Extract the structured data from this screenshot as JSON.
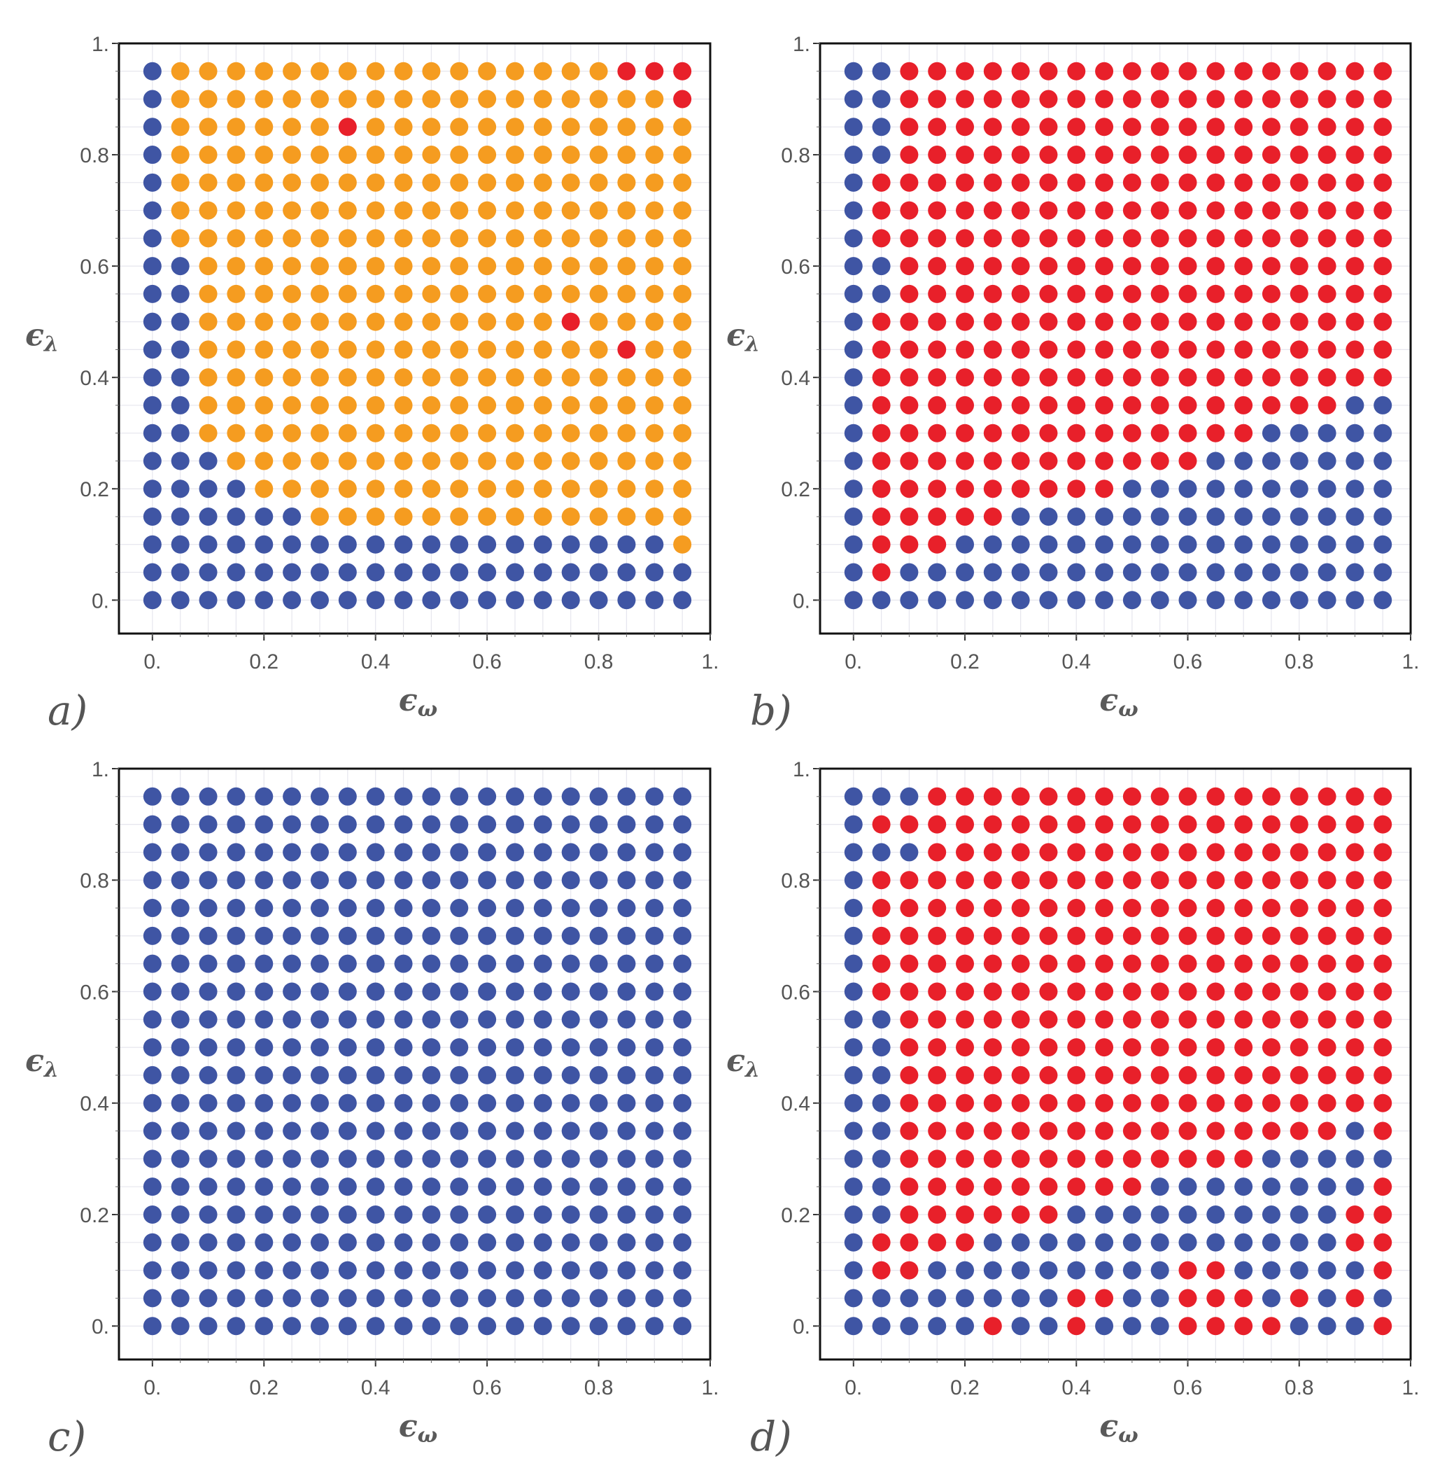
{
  "colors": {
    "blue": "#3f55a4",
    "orange": "#f59c20",
    "red": "#e8202a",
    "grid": "#e6e6ee",
    "frame": "#111111"
  },
  "legend": {
    "0": "blue",
    "1": "orange",
    "2": "red"
  },
  "chart_data": [
    {
      "type": "scatter",
      "panel_label": "a)",
      "xlabel": {
        "main": "ϵ",
        "sub": "ω"
      },
      "ylabel": {
        "main": "ϵ",
        "sub": "λ"
      },
      "xlim": [
        -0.06,
        1.0
      ],
      "ylim": [
        -0.06,
        1.0
      ],
      "xticks": [
        "0.",
        "0.2",
        "0.4",
        "0.6",
        "0.8",
        "1."
      ],
      "yticks": [
        "0.",
        "0.2",
        "0.4",
        "0.6",
        "0.8",
        "1."
      ],
      "x": [
        0,
        0.05,
        0.1,
        0.15,
        0.2,
        0.25,
        0.3,
        0.35,
        0.4,
        0.45,
        0.5,
        0.55,
        0.6,
        0.65,
        0.7,
        0.75,
        0.8,
        0.85,
        0.9,
        0.95
      ],
      "y": [
        0,
        0.05,
        0.1,
        0.15,
        0.2,
        0.25,
        0.3,
        0.35,
        0.4,
        0.45,
        0.5,
        0.55,
        0.6,
        0.65,
        0.7,
        0.75,
        0.8,
        0.85,
        0.9,
        0.95
      ],
      "grid_rows_top_to_bottom": [
        "01111111111111111222",
        "01111111111111111112",
        "01111112111111111111",
        "01111111111111111111",
        "01111111111111111111",
        "01111111111111111111",
        "01111111111111111111",
        "00111111111111111111",
        "00111111111111111111",
        "00111111111111121111",
        "00111111111111111211",
        "00111111111111111111",
        "00111111111111111111",
        "00111111111111111111",
        "00011111111111111111",
        "00001111111111111111",
        "00000011111111111111",
        "00000000000000000001",
        "00000000000000000000",
        "00000000000000000000"
      ]
    },
    {
      "type": "scatter",
      "panel_label": "b)",
      "xlabel": {
        "main": "ϵ",
        "sub": "ω"
      },
      "ylabel": {
        "main": "ϵ",
        "sub": "λ"
      },
      "xlim": [
        -0.06,
        1.0
      ],
      "ylim": [
        -0.06,
        1.0
      ],
      "xticks": [
        "0.",
        "0.2",
        "0.4",
        "0.6",
        "0.8",
        "1."
      ],
      "yticks": [
        "0.",
        "0.2",
        "0.4",
        "0.6",
        "0.8",
        "1."
      ],
      "x": [
        0,
        0.05,
        0.1,
        0.15,
        0.2,
        0.25,
        0.3,
        0.35,
        0.4,
        0.45,
        0.5,
        0.55,
        0.6,
        0.65,
        0.7,
        0.75,
        0.8,
        0.85,
        0.9,
        0.95
      ],
      "y": [
        0,
        0.05,
        0.1,
        0.15,
        0.2,
        0.25,
        0.3,
        0.35,
        0.4,
        0.45,
        0.5,
        0.55,
        0.6,
        0.65,
        0.7,
        0.75,
        0.8,
        0.85,
        0.9,
        0.95
      ],
      "grid_rows_top_to_bottom": [
        "00222222222222222222",
        "00222222222222222222",
        "00222222222222222222",
        "00222222222222222222",
        "02222222222222222222",
        "02222222222222222222",
        "02222222222222222222",
        "00222222222222222222",
        "00222222222222222222",
        "02222222222222222222",
        "02222222222222222222",
        "02222222222222222222",
        "02222222222222222200",
        "02222222222222200000",
        "02222222222220000000",
        "02222222220000000000",
        "02222200000000000000",
        "02220000000000000000",
        "02000000000000000000",
        "00000000000000000000"
      ]
    },
    {
      "type": "scatter",
      "panel_label": "c)",
      "xlabel": {
        "main": "ϵ",
        "sub": "ω"
      },
      "ylabel": {
        "main": "ϵ",
        "sub": "λ"
      },
      "xlim": [
        -0.06,
        1.0
      ],
      "ylim": [
        -0.06,
        1.0
      ],
      "xticks": [
        "0.",
        "0.2",
        "0.4",
        "0.6",
        "0.8",
        "1."
      ],
      "yticks": [
        "0.",
        "0.2",
        "0.4",
        "0.6",
        "0.8",
        "1."
      ],
      "x": [
        0,
        0.05,
        0.1,
        0.15,
        0.2,
        0.25,
        0.3,
        0.35,
        0.4,
        0.45,
        0.5,
        0.55,
        0.6,
        0.65,
        0.7,
        0.75,
        0.8,
        0.85,
        0.9,
        0.95
      ],
      "y": [
        0,
        0.05,
        0.1,
        0.15,
        0.2,
        0.25,
        0.3,
        0.35,
        0.4,
        0.45,
        0.5,
        0.55,
        0.6,
        0.65,
        0.7,
        0.75,
        0.8,
        0.85,
        0.9,
        0.95
      ],
      "grid_rows_top_to_bottom": [
        "00000000000000000000",
        "00000000000000000000",
        "00000000000000000000",
        "00000000000000000000",
        "00000000000000000000",
        "00000000000000000000",
        "00000000000000000000",
        "00000000000000000000",
        "00000000000000000000",
        "00000000000000000000",
        "00000000000000000000",
        "00000000000000000000",
        "00000000000000000000",
        "00000000000000000000",
        "00000000000000000000",
        "00000000000000000000",
        "00000000000000000000",
        "00000000000000000000",
        "00000000000000000000",
        "00000000000000000000"
      ]
    },
    {
      "type": "scatter",
      "panel_label": "d)",
      "xlabel": {
        "main": "ϵ",
        "sub": "ω"
      },
      "ylabel": {
        "main": "ϵ",
        "sub": "λ"
      },
      "xlim": [
        -0.06,
        1.0
      ],
      "ylim": [
        -0.06,
        1.0
      ],
      "xticks": [
        "0.",
        "0.2",
        "0.4",
        "0.6",
        "0.8",
        "1."
      ],
      "yticks": [
        "0.",
        "0.2",
        "0.4",
        "0.6",
        "0.8",
        "1."
      ],
      "x": [
        0,
        0.05,
        0.1,
        0.15,
        0.2,
        0.25,
        0.3,
        0.35,
        0.4,
        0.45,
        0.5,
        0.55,
        0.6,
        0.65,
        0.7,
        0.75,
        0.8,
        0.85,
        0.9,
        0.95
      ],
      "y": [
        0,
        0.05,
        0.1,
        0.15,
        0.2,
        0.25,
        0.3,
        0.35,
        0.4,
        0.45,
        0.5,
        0.55,
        0.6,
        0.65,
        0.7,
        0.75,
        0.8,
        0.85,
        0.9,
        0.95
      ],
      "grid_rows_top_to_bottom": [
        "00022222222222222222",
        "02222222222222222222",
        "00022222222222222222",
        "02222222222222222222",
        "02222222222222222222",
        "02222222222222222222",
        "02222222222222222222",
        "02222222222222222222",
        "00222222222222222222",
        "00222222222222222222",
        "00222222222222222222",
        "00222222222222222222",
        "00222222222222222202",
        "00222222222222200000",
        "00222222222000000002",
        "00222222000000000022",
        "02222000000000000022",
        "02200000000022000002",
        "00000000220022202020",
        "00000200200022220002"
      ]
    }
  ]
}
